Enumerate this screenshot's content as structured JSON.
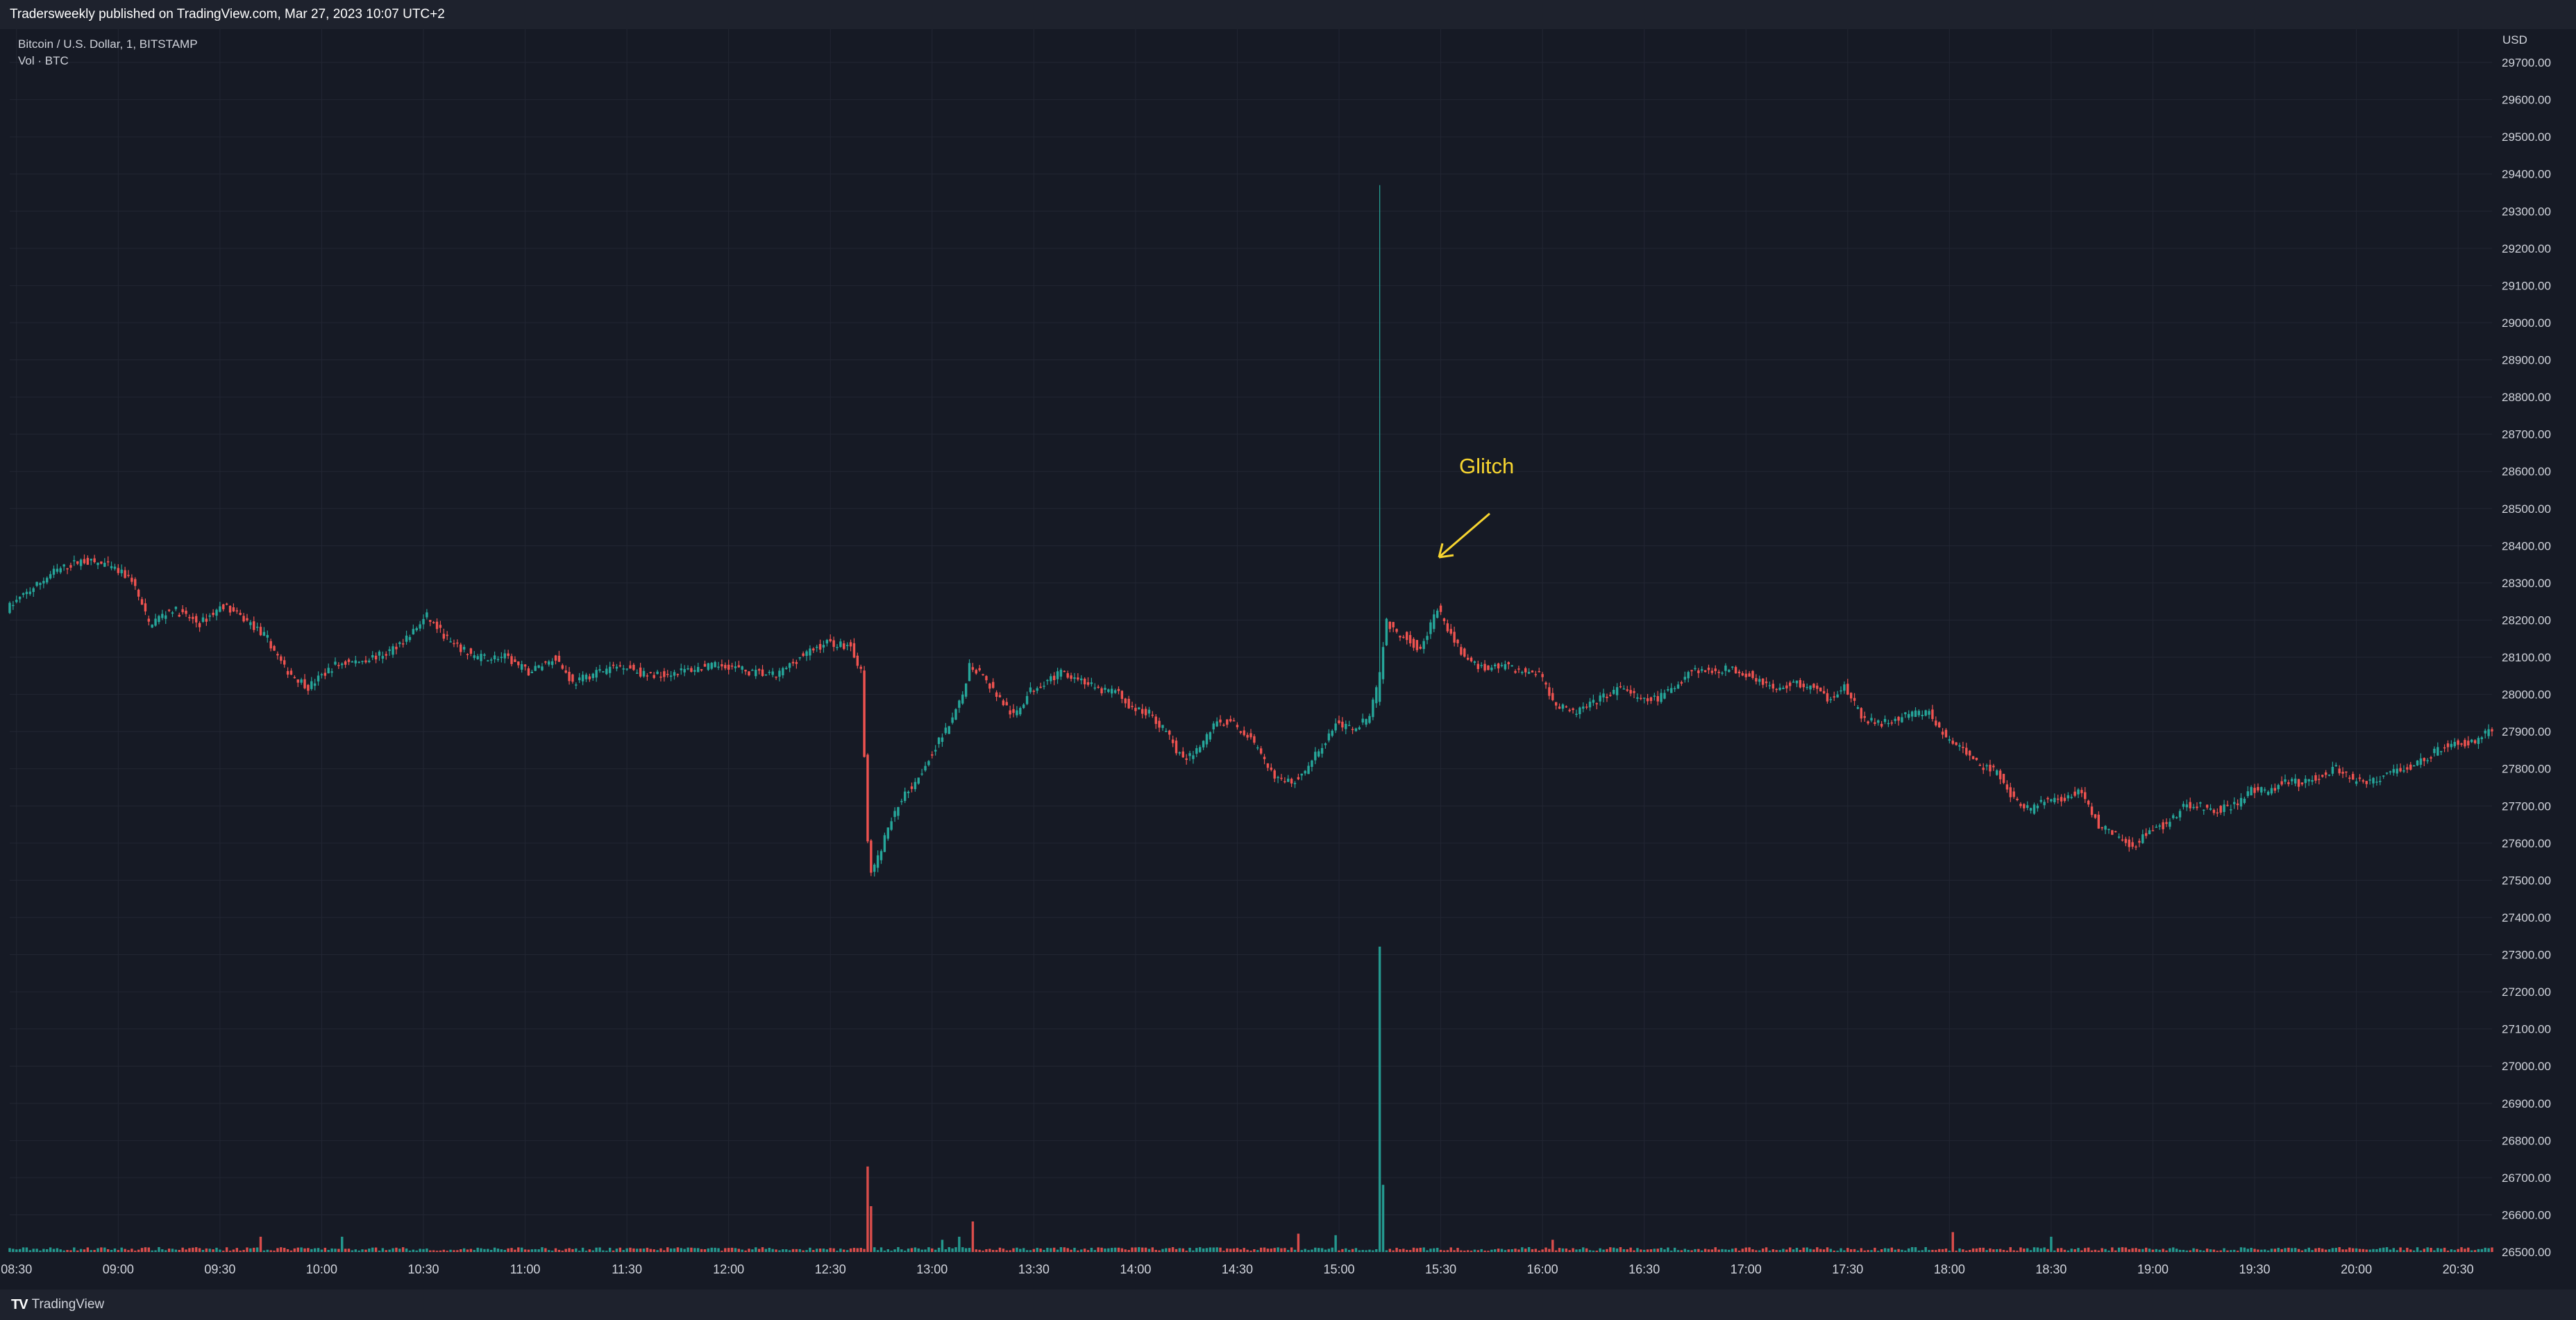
{
  "header": {
    "publisher_text": "Tradersweekly published on TradingView.com, Mar 27, 2023 10:07 UTC+2"
  },
  "legend": {
    "symbol": "Bitcoin / U.S. Dollar, 1, BITSTAMP",
    "volume": "Vol · BTC"
  },
  "footer": {
    "logo_text": "TradingView",
    "logo_icon": "tradingview-logo-icon"
  },
  "colors": {
    "background": "#161a25",
    "grid": "#222633",
    "up": "#26a69a",
    "down": "#ef5350",
    "annotation": "#f7d530",
    "axis_text": "#d1d4dc"
  },
  "chart_data": {
    "type": "candlestick",
    "title": "Bitcoin / U.S. Dollar, 1, BITSTAMP",
    "currency": "USD",
    "y_ticks": [
      29700,
      29600,
      29500,
      29400,
      29300,
      29200,
      29100,
      29000,
      28900,
      28800,
      28700,
      28600,
      28500,
      28400,
      28300,
      28200,
      28100,
      28000,
      27900,
      27800,
      27700,
      27600,
      27500,
      27400,
      27300,
      27200,
      27100,
      27000,
      26900,
      26800,
      26700,
      26600,
      26500
    ],
    "ylim": [
      26500,
      29700
    ],
    "x_ticks": [
      "08:30",
      "09:00",
      "09:30",
      "10:00",
      "10:30",
      "11:00",
      "11:30",
      "12:00",
      "12:30",
      "13:00",
      "13:30",
      "14:00",
      "14:30",
      "15:00",
      "15:30",
      "16:00",
      "16:30",
      "17:00",
      "17:30",
      "18:00",
      "18:30",
      "19:00",
      "19:30",
      "20:00",
      "20:30"
    ],
    "xlim": [
      "08:28",
      "20:40"
    ],
    "grid": true,
    "price_points": [
      [
        "08:28",
        28230
      ],
      [
        "08:35",
        28280
      ],
      [
        "08:42",
        28330
      ],
      [
        "08:50",
        28360
      ],
      [
        "08:57",
        28350
      ],
      [
        "09:05",
        28310
      ],
      [
        "09:10",
        28190
      ],
      [
        "09:17",
        28230
      ],
      [
        "09:25",
        28190
      ],
      [
        "09:32",
        28240
      ],
      [
        "09:40",
        28190
      ],
      [
        "09:45",
        28150
      ],
      [
        "09:50",
        28070
      ],
      [
        "09:57",
        28020
      ],
      [
        "10:05",
        28080
      ],
      [
        "10:12",
        28090
      ],
      [
        "10:20",
        28110
      ],
      [
        "10:27",
        28160
      ],
      [
        "10:32",
        28210
      ],
      [
        "10:40",
        28130
      ],
      [
        "10:47",
        28100
      ],
      [
        "10:55",
        28100
      ],
      [
        "11:02",
        28060
      ],
      [
        "11:10",
        28100
      ],
      [
        "11:15",
        28030
      ],
      [
        "11:22",
        28060
      ],
      [
        "11:30",
        28080
      ],
      [
        "11:37",
        28050
      ],
      [
        "11:45",
        28060
      ],
      [
        "11:52",
        28070
      ],
      [
        "12:00",
        28080
      ],
      [
        "12:07",
        28060
      ],
      [
        "12:15",
        28050
      ],
      [
        "12:22",
        28100
      ],
      [
        "12:30",
        28140
      ],
      [
        "12:37",
        28130
      ],
      [
        "12:40",
        28060
      ],
      [
        "12:42",
        27600
      ],
      [
        "12:43",
        27520
      ],
      [
        "12:45",
        27560
      ],
      [
        "12:48",
        27640
      ],
      [
        "12:52",
        27720
      ],
      [
        "12:57",
        27780
      ],
      [
        "13:02",
        27860
      ],
      [
        "13:07",
        27930
      ],
      [
        "13:10",
        28000
      ],
      [
        "13:12",
        28080
      ],
      [
        "13:15",
        28060
      ],
      [
        "13:20",
        28000
      ],
      [
        "13:25",
        27940
      ],
      [
        "13:30",
        28010
      ],
      [
        "13:35",
        28040
      ],
      [
        "13:40",
        28060
      ],
      [
        "13:45",
        28040
      ],
      [
        "13:50",
        28010
      ],
      [
        "13:55",
        28010
      ],
      [
        "14:00",
        27960
      ],
      [
        "14:05",
        27950
      ],
      [
        "14:10",
        27900
      ],
      [
        "14:15",
        27820
      ],
      [
        "14:20",
        27860
      ],
      [
        "14:25",
        27930
      ],
      [
        "14:30",
        27920
      ],
      [
        "14:35",
        27880
      ],
      [
        "14:40",
        27800
      ],
      [
        "14:45",
        27760
      ],
      [
        "14:50",
        27780
      ],
      [
        "14:55",
        27850
      ],
      [
        "15:00",
        27920
      ],
      [
        "15:05",
        27910
      ],
      [
        "15:10",
        27940
      ],
      [
        "15:13",
        28050
      ],
      [
        "15:15",
        28200
      ],
      [
        "15:17",
        28170
      ],
      [
        "15:20",
        28160
      ],
      [
        "15:25",
        28120
      ],
      [
        "15:30",
        28230
      ],
      [
        "15:35",
        28140
      ],
      [
        "15:40",
        28080
      ],
      [
        "15:45",
        28070
      ],
      [
        "15:50",
        28080
      ],
      [
        "15:55",
        28060
      ],
      [
        "16:00",
        28060
      ],
      [
        "16:05",
        27970
      ],
      [
        "16:10",
        27950
      ],
      [
        "16:15",
        27970
      ],
      [
        "16:20",
        28000
      ],
      [
        "16:25",
        28020
      ],
      [
        "16:30",
        27980
      ],
      [
        "16:35",
        27990
      ],
      [
        "16:40",
        28020
      ],
      [
        "16:45",
        28070
      ],
      [
        "16:50",
        28060
      ],
      [
        "16:55",
        28070
      ],
      [
        "17:00",
        28060
      ],
      [
        "17:05",
        28040
      ],
      [
        "17:10",
        28010
      ],
      [
        "17:15",
        28030
      ],
      [
        "17:20",
        28020
      ],
      [
        "17:25",
        27990
      ],
      [
        "17:30",
        28020
      ],
      [
        "17:35",
        27940
      ],
      [
        "17:40",
        27920
      ],
      [
        "17:45",
        27930
      ],
      [
        "17:50",
        27950
      ],
      [
        "17:55",
        27950
      ],
      [
        "18:00",
        27880
      ],
      [
        "18:05",
        27850
      ],
      [
        "18:10",
        27810
      ],
      [
        "18:15",
        27790
      ],
      [
        "18:20",
        27720
      ],
      [
        "18:25",
        27690
      ],
      [
        "18:30",
        27720
      ],
      [
        "18:35",
        27720
      ],
      [
        "18:40",
        27740
      ],
      [
        "18:45",
        27650
      ],
      [
        "18:50",
        27620
      ],
      [
        "18:55",
        27590
      ],
      [
        "19:00",
        27640
      ],
      [
        "19:05",
        27650
      ],
      [
        "19:10",
        27700
      ],
      [
        "19:15",
        27700
      ],
      [
        "19:20",
        27690
      ],
      [
        "19:25",
        27700
      ],
      [
        "19:30",
        27740
      ],
      [
        "19:35",
        27740
      ],
      [
        "19:40",
        27770
      ],
      [
        "19:45",
        27760
      ],
      [
        "19:50",
        27780
      ],
      [
        "19:55",
        27800
      ],
      [
        "20:00",
        27770
      ],
      [
        "20:05",
        27760
      ],
      [
        "20:10",
        27790
      ],
      [
        "20:15",
        27800
      ],
      [
        "20:20",
        27820
      ],
      [
        "20:25",
        27850
      ],
      [
        "20:30",
        27870
      ],
      [
        "20:35",
        27870
      ],
      [
        "20:40",
        27900
      ]
    ],
    "glitch_candle": {
      "time": "15:12",
      "open": 27980,
      "high": 29370,
      "low": 27970,
      "close": 28060,
      "volume_peak": 1.0
    },
    "volume_spikes": [
      [
        "12:41",
        0.28
      ],
      [
        "12:42",
        0.15
      ],
      [
        "13:12",
        0.1
      ],
      [
        "15:12",
        1.0
      ],
      [
        "15:13",
        0.22
      ],
      [
        "09:42",
        0.05
      ],
      [
        "10:06",
        0.05
      ],
      [
        "14:48",
        0.06
      ],
      [
        "14:59",
        0.055
      ],
      [
        "18:01",
        0.065
      ],
      [
        "18:30",
        0.05
      ],
      [
        "16:03",
        0.04
      ],
      [
        "13:03",
        0.04
      ],
      [
        "13:08",
        0.05
      ]
    ],
    "annotations": [
      {
        "text": "Glitch",
        "near_time": "15:13",
        "near_price": 28420
      }
    ]
  }
}
